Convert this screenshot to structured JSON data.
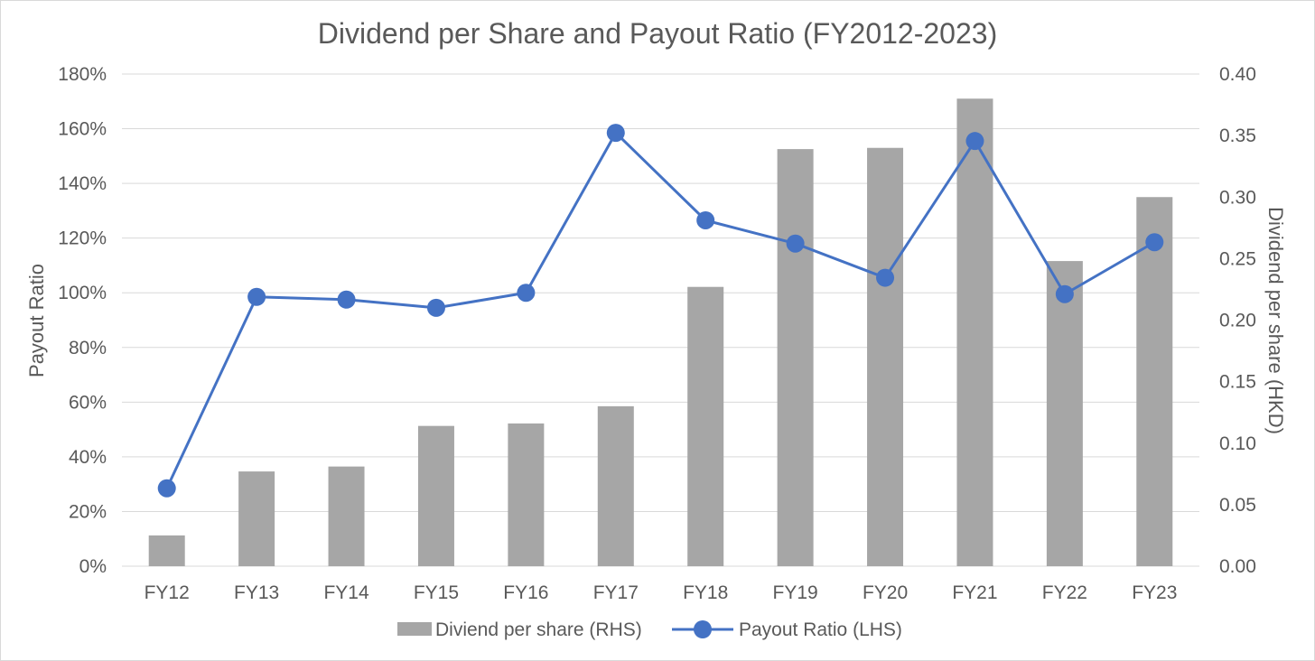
{
  "chart_data": {
    "type": "bar",
    "title": "Dividend per Share and Payout Ratio (FY2012-2023)",
    "categories": [
      "FY12",
      "FY13",
      "FY14",
      "FY15",
      "FY16",
      "FY17",
      "FY18",
      "FY19",
      "FY20",
      "FY21",
      "FY22",
      "FY23"
    ],
    "y_left": {
      "label": "Payout Ratio",
      "range": [
        0,
        180
      ],
      "tick_labels": [
        "0%",
        "20%",
        "40%",
        "60%",
        "80%",
        "100%",
        "120%",
        "140%",
        "160%",
        "180%"
      ]
    },
    "y_right": {
      "label": "Dividend per share (HKD)",
      "range": [
        0,
        0.4
      ],
      "tick_labels": [
        "0.00",
        "0.05",
        "0.10",
        "0.15",
        "0.20",
        "0.25",
        "0.30",
        "0.35",
        "0.40"
      ]
    },
    "series": [
      {
        "name": "Diviend per share (RHS)",
        "type": "bar",
        "axis": "right",
        "color": "#a6a6a6",
        "values": [
          0.025,
          0.077,
          0.081,
          0.114,
          0.116,
          0.13,
          0.227,
          0.339,
          0.34,
          0.38,
          0.248,
          0.3
        ]
      },
      {
        "name": "Payout Ratio (LHS)",
        "type": "line",
        "axis": "left",
        "color": "#4472c4",
        "values": [
          28.5,
          98.5,
          97.5,
          94.5,
          100,
          158.5,
          126.5,
          118,
          105.5,
          155.5,
          99.5,
          118.5
        ]
      }
    ],
    "grid": true,
    "legend": "bottom"
  }
}
